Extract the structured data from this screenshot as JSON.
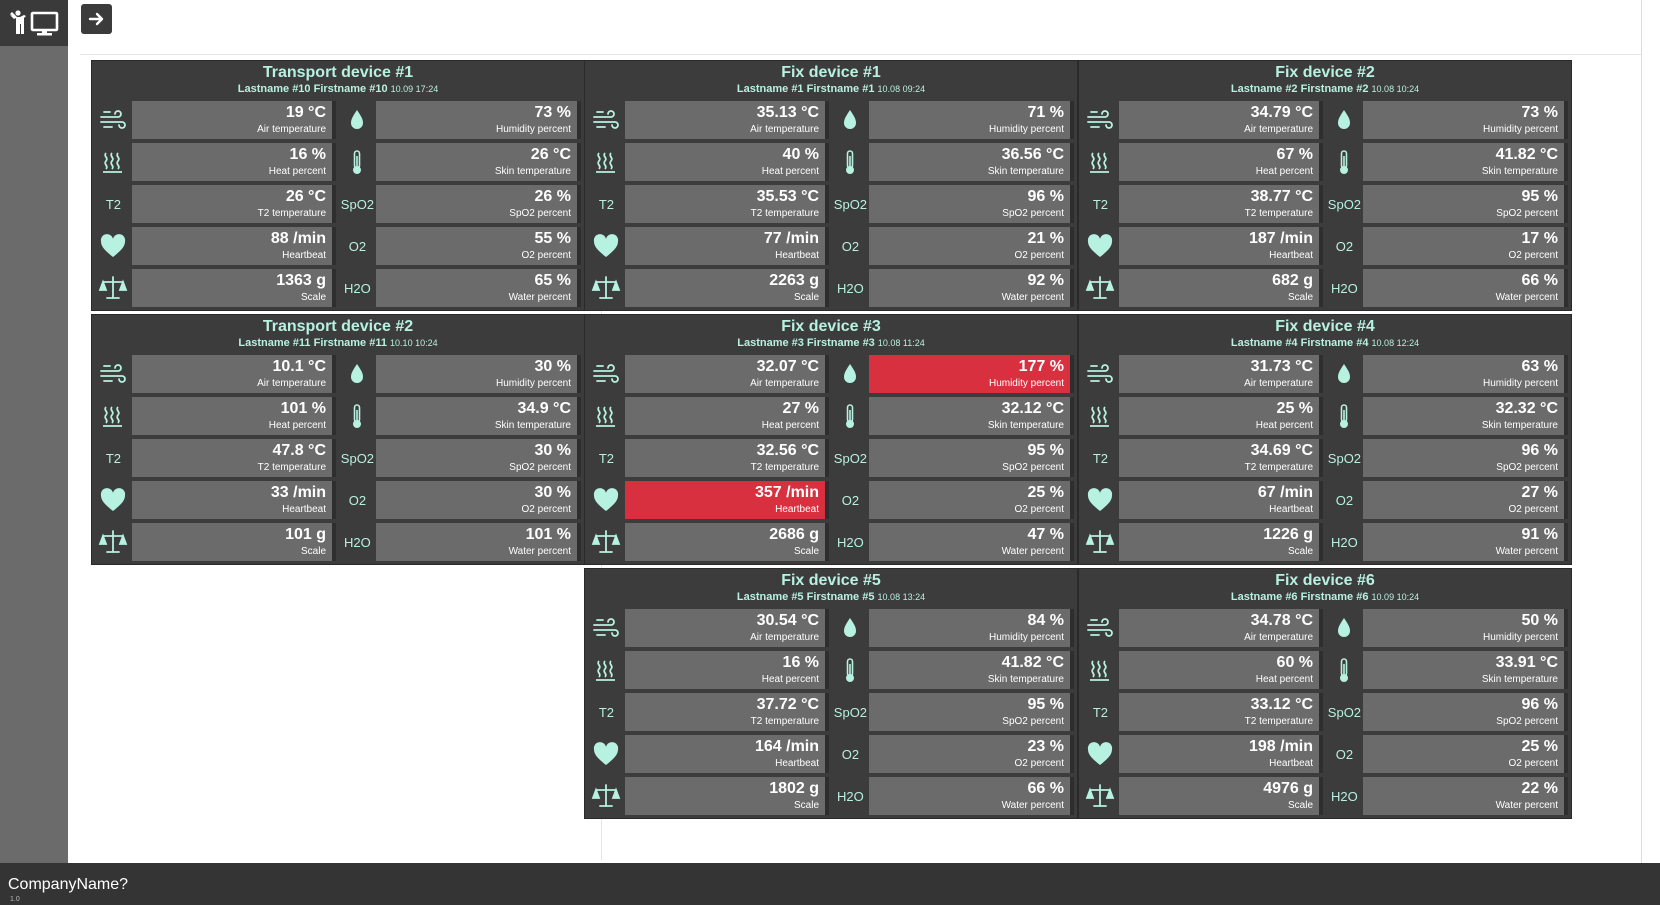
{
  "footer": {
    "company": "CompanyName?",
    "version": "1.0"
  },
  "labels": {
    "air": "Air temperature",
    "humidity": "Humidity percent",
    "heat": "Heat percent",
    "skin": "Skin temperature",
    "t2": "T2 temperature",
    "spo2": "SpO2 percent",
    "heartbeat": "Heartbeat",
    "o2": "O2 percent",
    "scale": "Scale",
    "water": "Water percent"
  },
  "icon_text": {
    "t2": "T2",
    "spo2": "SpO2",
    "o2": "O2",
    "h2o": "H2O"
  },
  "devices": [
    {
      "title": "Transport device #1",
      "patient": "Lastname #10 Firstname #10",
      "date": "10.09 17:24",
      "air": "19 °C",
      "humidity": "73 %",
      "heat": "16 %",
      "skin": "26 °C",
      "t2": "26 °C",
      "spo2": "26 %",
      "heartbeat": "88 /min",
      "o2": "55 %",
      "scale": "1363 g",
      "water": "65 %",
      "alerts": []
    },
    {
      "title": "Fix device #1",
      "patient": "Lastname #1 Firstname #1",
      "date": "10.08 09:24",
      "air": "35.13 °C",
      "humidity": "71 %",
      "heat": "40 %",
      "skin": "36.56 °C",
      "t2": "35.53 °C",
      "spo2": "96 %",
      "heartbeat": "77 /min",
      "o2": "21 %",
      "scale": "2263 g",
      "water": "92 %",
      "alerts": []
    },
    {
      "title": "Fix device #2",
      "patient": "Lastname #2 Firstname #2",
      "date": "10.08 10:24",
      "air": "34.79 °C",
      "humidity": "73 %",
      "heat": "67 %",
      "skin": "41.82 °C",
      "t2": "38.77 °C",
      "spo2": "95 %",
      "heartbeat": "187 /min",
      "o2": "17 %",
      "scale": "682 g",
      "water": "66 %",
      "alerts": []
    },
    {
      "title": "Transport device #2",
      "patient": "Lastname #11 Firstname #11",
      "date": "10.10 10:24",
      "air": "10.1 °C",
      "humidity": "30 %",
      "heat": "101 %",
      "skin": "34.9 °C",
      "t2": "47.8 °C",
      "spo2": "30 %",
      "heartbeat": "33 /min",
      "o2": "30 %",
      "scale": "101 g",
      "water": "101 %",
      "alerts": []
    },
    {
      "title": "Fix device #3",
      "patient": "Lastname #3 Firstname #3",
      "date": "10.08 11:24",
      "air": "32.07 °C",
      "humidity": "177 %",
      "heat": "27 %",
      "skin": "32.12 °C",
      "t2": "32.56 °C",
      "spo2": "95 %",
      "heartbeat": "357 /min",
      "o2": "25 %",
      "scale": "2686 g",
      "water": "47 %",
      "alerts": [
        "humidity",
        "heartbeat"
      ]
    },
    {
      "title": "Fix device #4",
      "patient": "Lastname #4 Firstname #4",
      "date": "10.08 12:24",
      "air": "31.73 °C",
      "humidity": "63 %",
      "heat": "25 %",
      "skin": "32.32 °C",
      "t2": "34.69 °C",
      "spo2": "96 %",
      "heartbeat": "67 /min",
      "o2": "27 %",
      "scale": "1226 g",
      "water": "91 %",
      "alerts": []
    },
    {
      "title": "Fix device #5",
      "patient": "Lastname #5 Firstname #5",
      "date": "10.08 13:24",
      "air": "30.54 °C",
      "humidity": "84 %",
      "heat": "16 %",
      "skin": "41.82 °C",
      "t2": "37.72 °C",
      "spo2": "95 %",
      "heartbeat": "164 /min",
      "o2": "23 %",
      "scale": "1802 g",
      "water": "66 %",
      "alerts": []
    },
    {
      "title": "Fix device #6",
      "patient": "Lastname #6 Firstname #6",
      "date": "10.09 10:24",
      "air": "34.78 °C",
      "humidity": "50 %",
      "heat": "60 %",
      "skin": "33.91 °C",
      "t2": "33.12 °C",
      "spo2": "96 %",
      "heartbeat": "198 /min",
      "o2": "25 %",
      "scale": "4976 g",
      "water": "22 %",
      "alerts": []
    }
  ],
  "colors": {
    "accent": "#b7f1e0",
    "alert": "#d9303f",
    "panel": "#3c3c3c",
    "value_bg": "#6b6b6b"
  }
}
